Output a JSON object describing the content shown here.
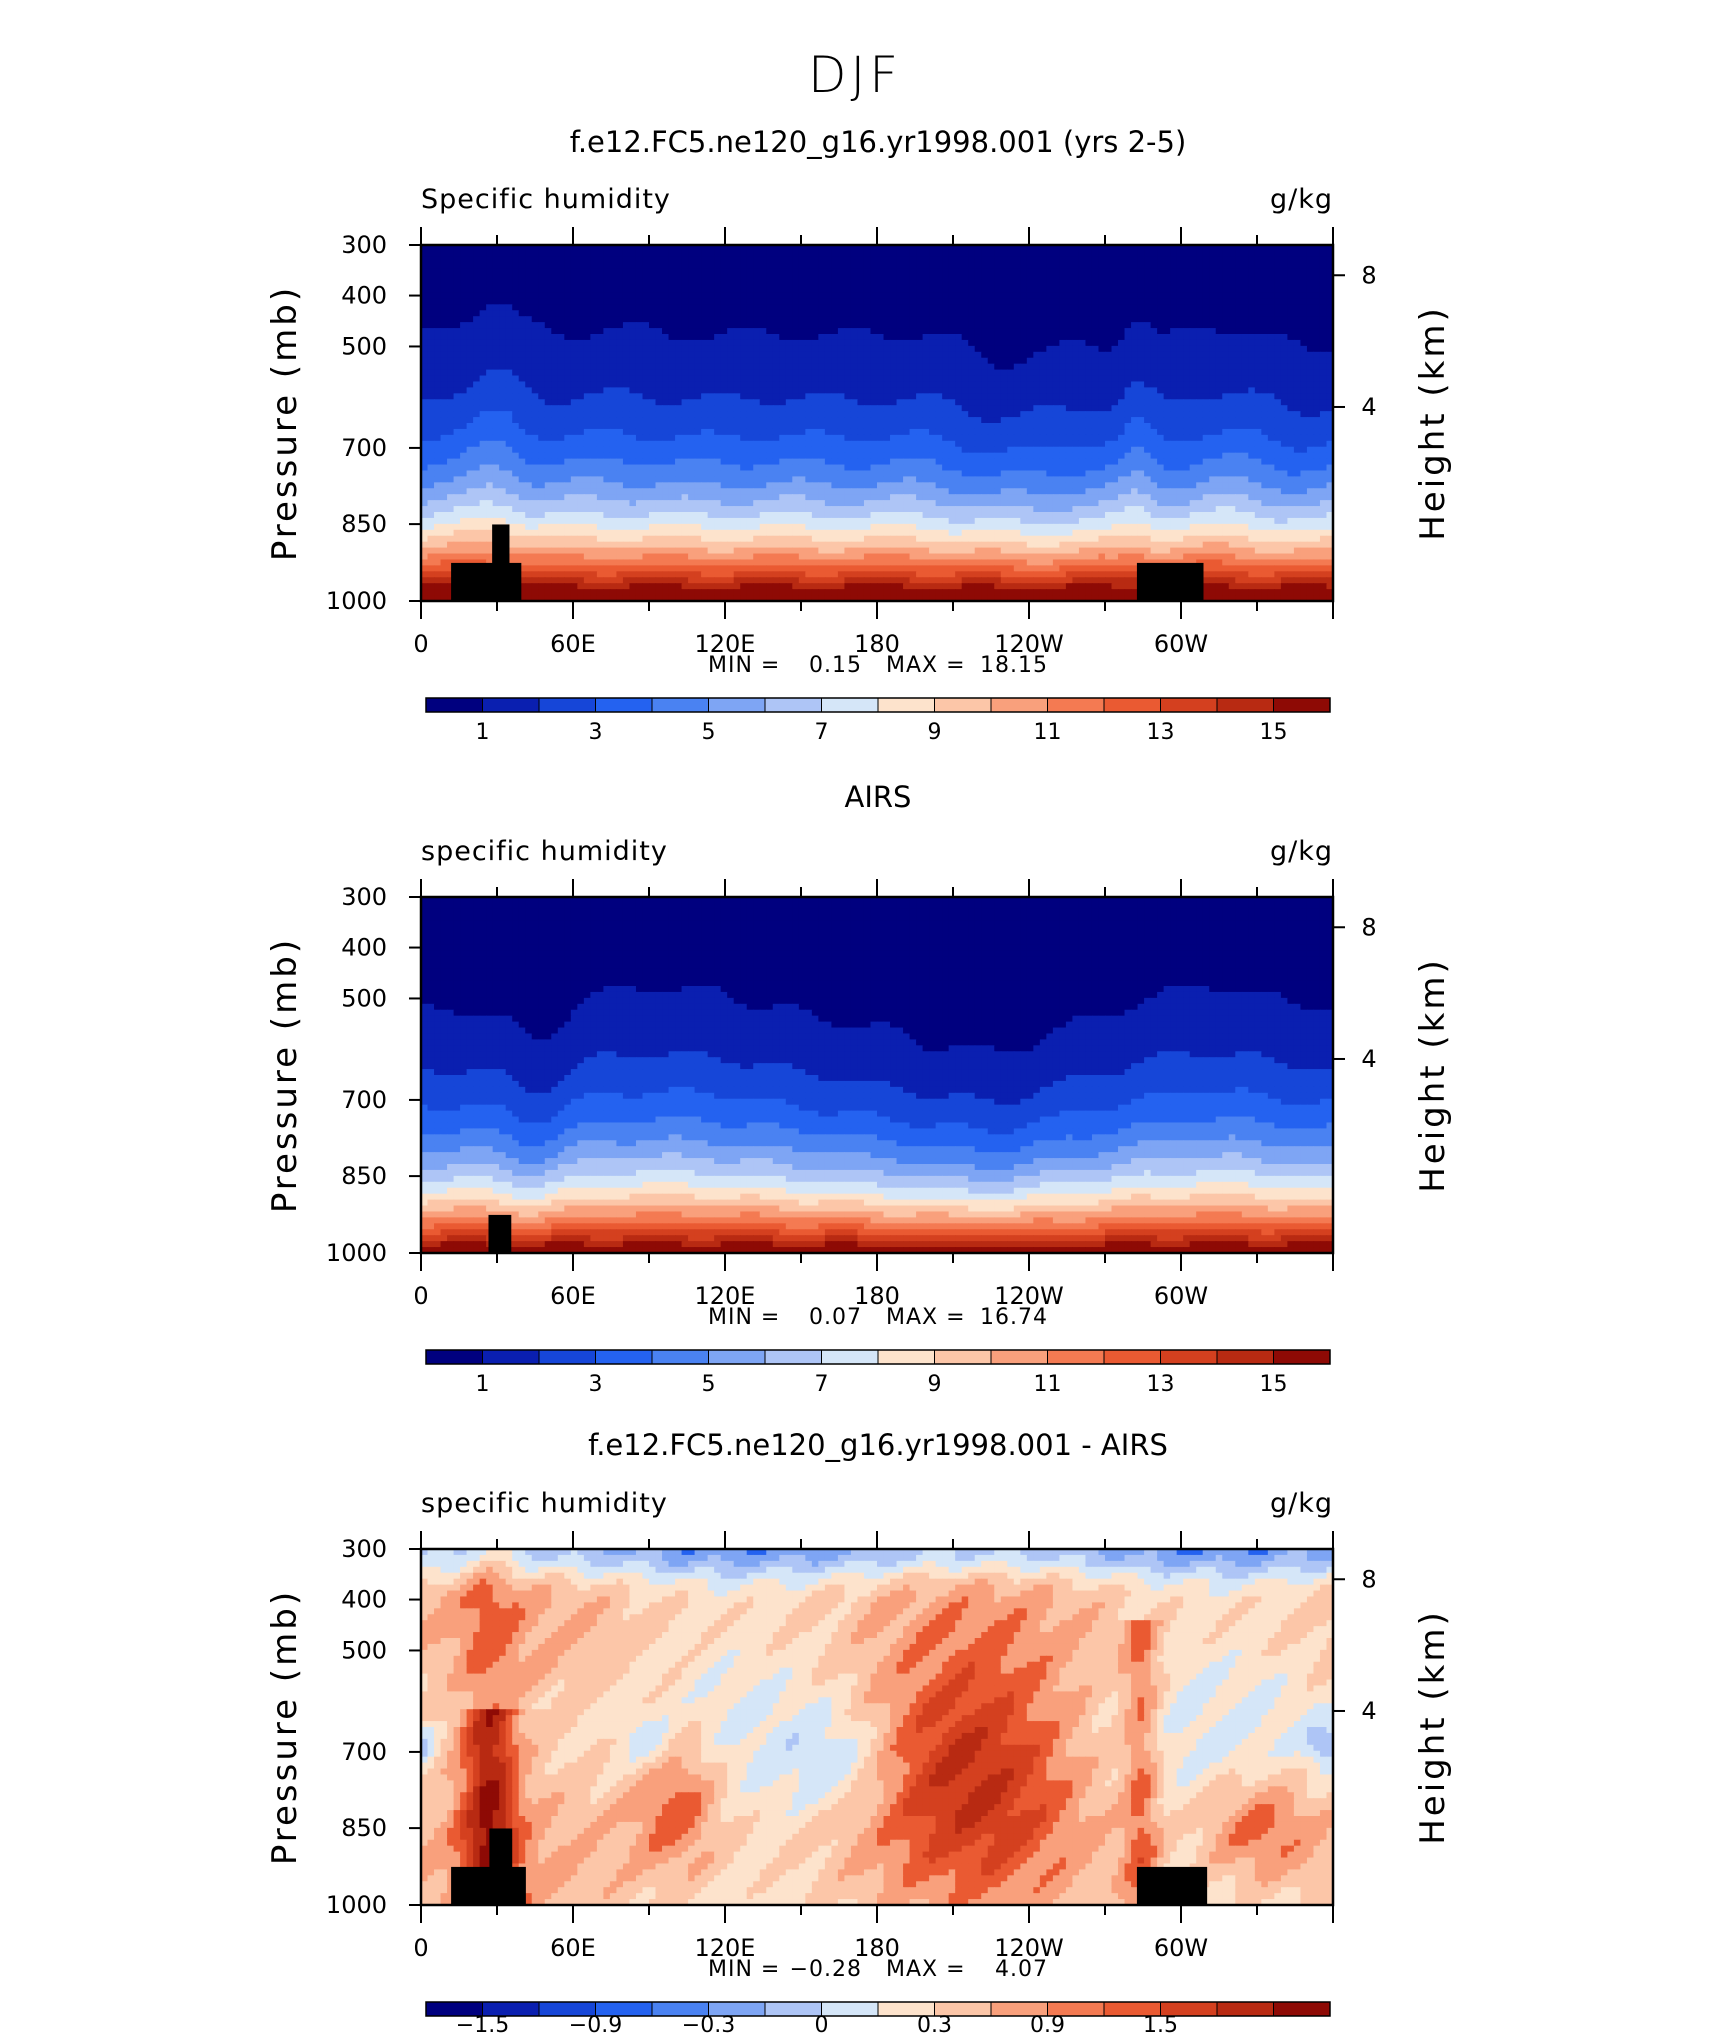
{
  "chart_data": {
    "type": "contour",
    "title": "DJF",
    "panels": [
      {
        "title": "f.e12.FC5.ne120_g16.yr1998.001 (yrs 2-5)",
        "var_label": "Specific humidity",
        "units": "g/kg",
        "ylabel": "Pressure (mb)",
        "y2label": "Height (km)",
        "ylim": [
          1000,
          300
        ],
        "yticks": [
          "300",
          "400",
          "500",
          "700",
          "850",
          "1000"
        ],
        "y2ticks": [
          "8",
          "4"
        ],
        "xlim": [
          0,
          360
        ],
        "xticks": [
          "0",
          "60E",
          "120E",
          "180",
          "120W",
          "60W"
        ],
        "min": "0.15",
        "max": "18.15",
        "min_text": "MIN =",
        "max_text": "MAX =",
        "colorbar": {
          "levels": [
            0.5,
            1,
            2,
            3,
            4,
            5,
            6,
            7,
            8,
            9,
            10,
            11,
            12,
            13,
            14,
            15,
            16
          ],
          "labels": [
            "1",
            "3",
            "5",
            "7",
            "9",
            "11",
            "13",
            "15"
          ]
        }
      },
      {
        "title": "AIRS",
        "var_label": "specific humidity",
        "units": "g/kg",
        "ylabel": "Pressure (mb)",
        "y2label": "Height (km)",
        "ylim": [
          1000,
          300
        ],
        "yticks": [
          "300",
          "400",
          "500",
          "700",
          "850",
          "1000"
        ],
        "y2ticks": [
          "8",
          "4"
        ],
        "xlim": [
          0,
          360
        ],
        "xticks": [
          "0",
          "60E",
          "120E",
          "180",
          "120W",
          "60W"
        ],
        "min": "0.07",
        "max": "16.74",
        "min_text": "MIN =",
        "max_text": "MAX =",
        "colorbar": {
          "levels": [
            0.5,
            1,
            2,
            3,
            4,
            5,
            6,
            7,
            8,
            9,
            10,
            11,
            12,
            13,
            14,
            15,
            16
          ],
          "labels": [
            "1",
            "3",
            "5",
            "7",
            "9",
            "11",
            "13",
            "15"
          ]
        }
      },
      {
        "title": "f.e12.FC5.ne120_g16.yr1998.001 - AIRS",
        "var_label": "specific humidity",
        "units": "g/kg",
        "ylabel": "Pressure (mb)",
        "y2label": "Height (km)",
        "ylim": [
          1000,
          300
        ],
        "yticks": [
          "300",
          "400",
          "500",
          "700",
          "850",
          "1000"
        ],
        "y2ticks": [
          "8",
          "4"
        ],
        "xlim": [
          0,
          360
        ],
        "xticks": [
          "0",
          "60E",
          "120E",
          "180",
          "120W",
          "60W"
        ],
        "min": "−0.28",
        "max": "4.07",
        "min_text": "MIN =",
        "max_text": "MAX =",
        "colorbar": {
          "levels": [
            -1.8,
            -1.5,
            -1.2,
            -0.9,
            -0.6,
            -0.3,
            0,
            0.3,
            0.6,
            0.9,
            1.2,
            1.5,
            1.8
          ],
          "labels": [
            "−1.5",
            "−0.9",
            "−0.3",
            "0",
            "0.3",
            "0.9",
            "1.5"
          ]
        }
      }
    ],
    "colors": [
      "#00007f",
      "#0a1fb0",
      "#1646d8",
      "#2462f0",
      "#4a82f2",
      "#7ea5f4",
      "#aec5f6",
      "#d5e6f8",
      "#fde3cc",
      "#fcc6a8",
      "#f9a07c",
      "#f47a52",
      "#ea5a32",
      "#d4401f",
      "#b82a12",
      "#8e0a05"
    ]
  }
}
